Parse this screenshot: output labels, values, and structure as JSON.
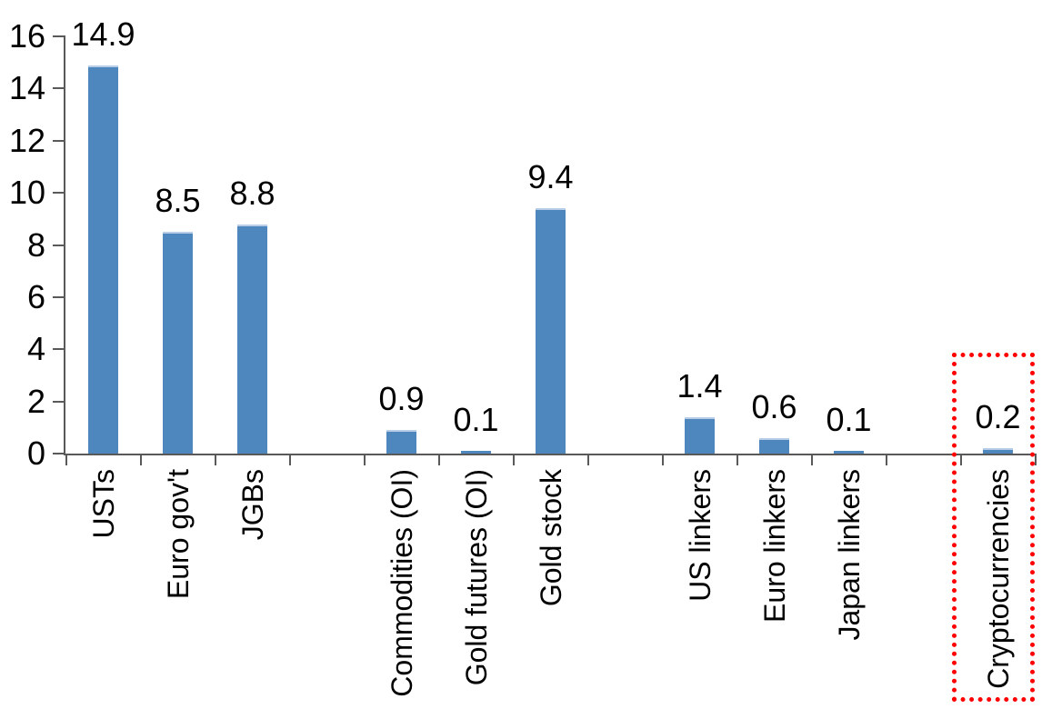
{
  "chart_data": {
    "type": "bar",
    "categories": [
      "USTs",
      "Euro gov't",
      "JGBs",
      "Commodities (OI)",
      "Gold futures (OI)",
      "Gold stock",
      "US linkers",
      "Euro linkers",
      "Japan linkers",
      "Cryptocurrencies"
    ],
    "values": [
      14.9,
      8.5,
      8.8,
      0.9,
      0.1,
      9.4,
      1.4,
      0.6,
      0.1,
      0.2
    ],
    "data_labels": [
      "14.9",
      "8.5",
      "8.8",
      "0.9",
      "0.1",
      "9.4",
      "1.4",
      "0.6",
      "0.1",
      "0.2"
    ],
    "slots": [
      0,
      1,
      2,
      4,
      5,
      6,
      8,
      9,
      10,
      12
    ],
    "total_slots": 13,
    "ylim": [
      0,
      16
    ],
    "yticks": [
      0,
      2,
      4,
      6,
      8,
      10,
      12,
      14,
      16
    ],
    "grid": false,
    "legend": false,
    "xlabel": "",
    "ylabel": "",
    "colors": {
      "bar": "#4E86BE",
      "bar_top_edge": "#B9CDE6",
      "axis": "#595959",
      "text": "#000000",
      "highlight_box": "#FF0000",
      "background": "#FFFFFF"
    },
    "highlight": {
      "category": "Cryptocurrencies",
      "style": "dotted-box"
    }
  }
}
